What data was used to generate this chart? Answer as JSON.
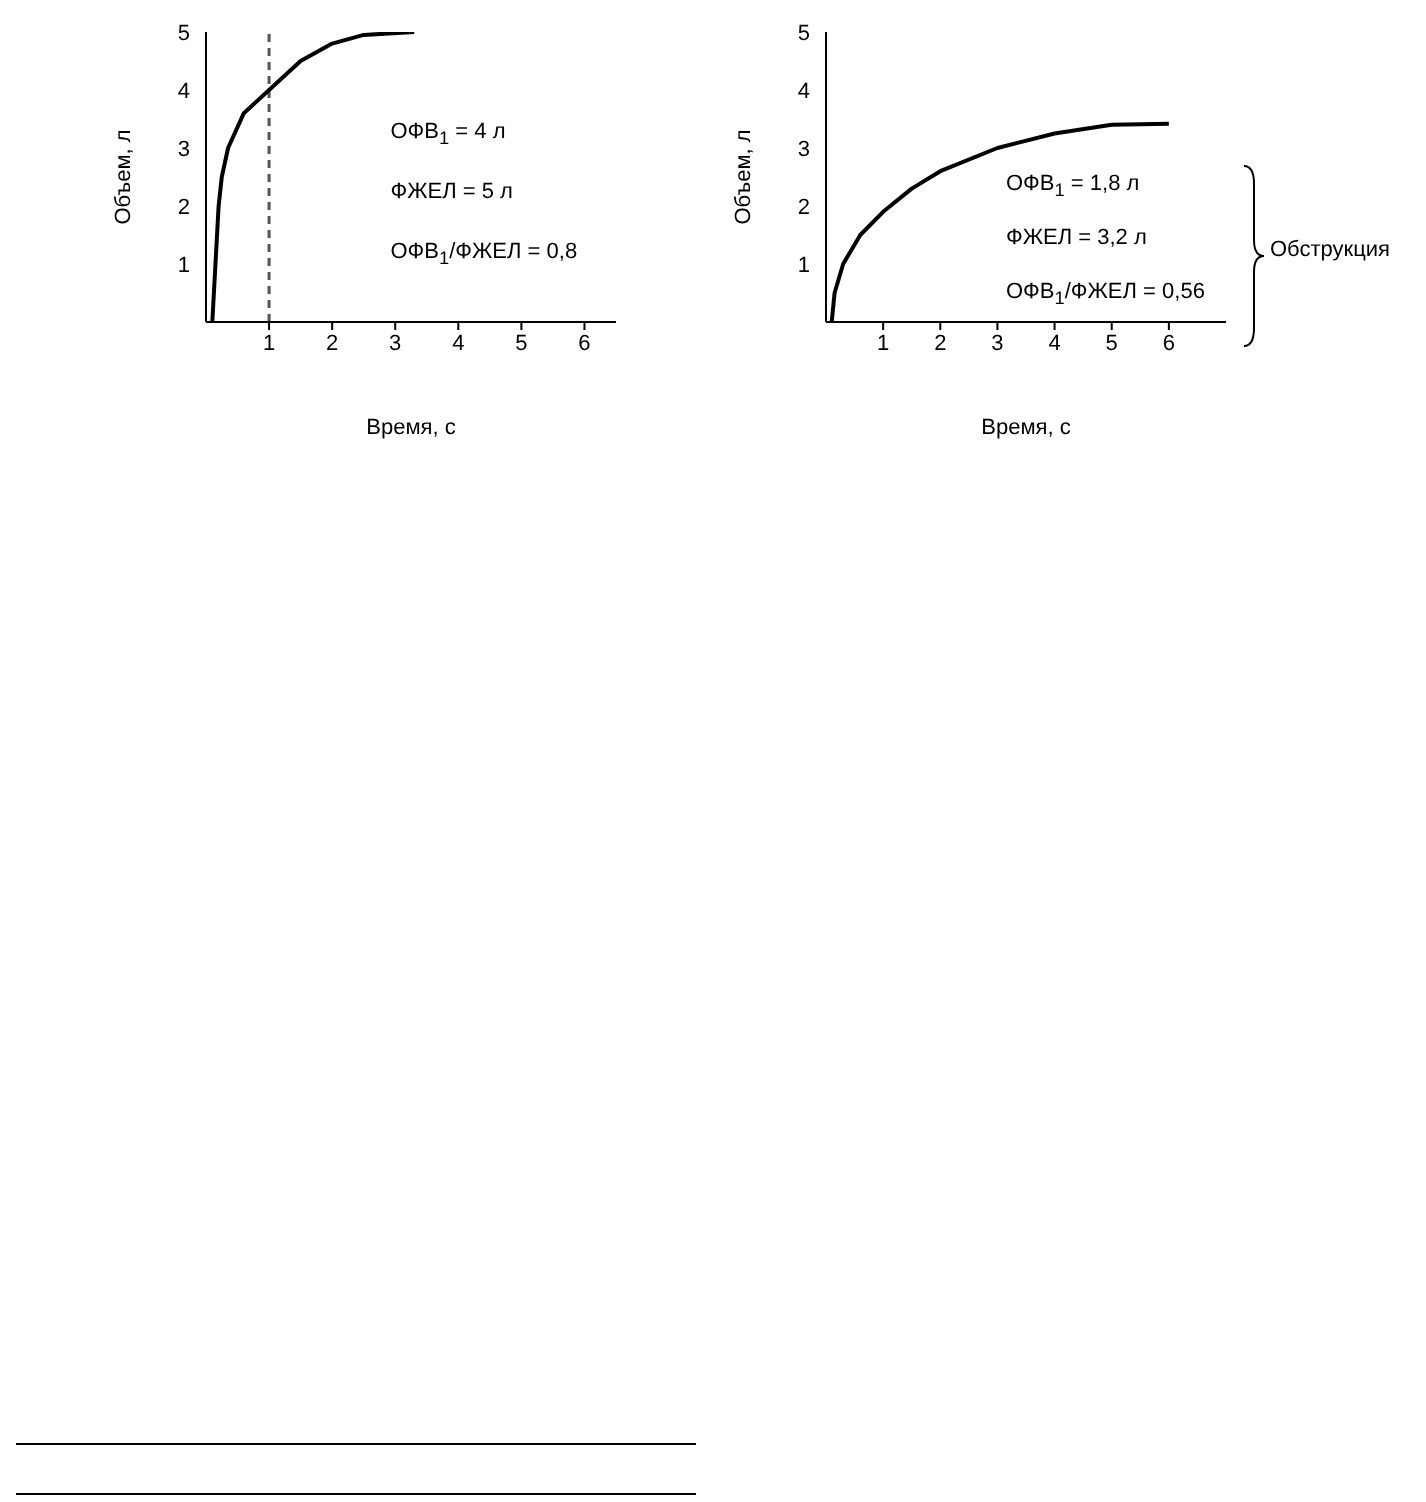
{
  "chart_data": [
    {
      "type": "line",
      "xlabel": "Время, с",
      "ylabel": "Объем, л",
      "xlim": [
        0,
        6.5
      ],
      "xticks": [
        1,
        2,
        3,
        4,
        5,
        6
      ],
      "ylim": [
        0,
        5
      ],
      "yticks": [
        1,
        2,
        3,
        4,
        5
      ],
      "marker": "none",
      "series": [
        {
          "color": "#000000",
          "x": [
            0.1,
            0.15,
            0.2,
            0.25,
            0.35,
            0.6,
            1,
            1.5,
            2,
            2.5,
            3.3
          ],
          "values": [
            0,
            1,
            2,
            2.5,
            3,
            3.6,
            4,
            4.5,
            4.8,
            4.95,
            5
          ]
        }
      ],
      "ref_lines": [
        {
          "axis": "x",
          "value": 1,
          "color": "#555555",
          "line_style": "dashed"
        }
      ],
      "annotations": [
        "ОФВ$_{1}$ = 4 л",
        "ФЖЕЛ = 5 л",
        "ОФВ$_{1}$/ФЖЕЛ = 0,8"
      ]
    },
    {
      "type": "line",
      "xlabel": "Время, с",
      "ylabel": "Объем, л",
      "xlim": [
        0,
        7
      ],
      "xticks": [
        1,
        2,
        3,
        4,
        5,
        6
      ],
      "ylim": [
        0,
        5
      ],
      "yticks": [
        1,
        2,
        3,
        4,
        5
      ],
      "marker": "none",
      "series": [
        {
          "color": "#000000",
          "x": [
            0.1,
            0.15,
            0.3,
            0.6,
            1,
            1.5,
            2,
            3,
            4,
            5,
            6
          ],
          "values": [
            0,
            0.5,
            1,
            1.5,
            1.9,
            2.3,
            2.6,
            3,
            3.25,
            3.4,
            3.42
          ]
        }
      ],
      "annotations": [
        "ОФВ$_{1}$ = 1,8 л",
        "ФЖЕЛ = 3,2 л",
        "ОФВ$_{1}$/ФЖЕЛ = 0,56",
        "Обструкция"
      ]
    }
  ]
}
